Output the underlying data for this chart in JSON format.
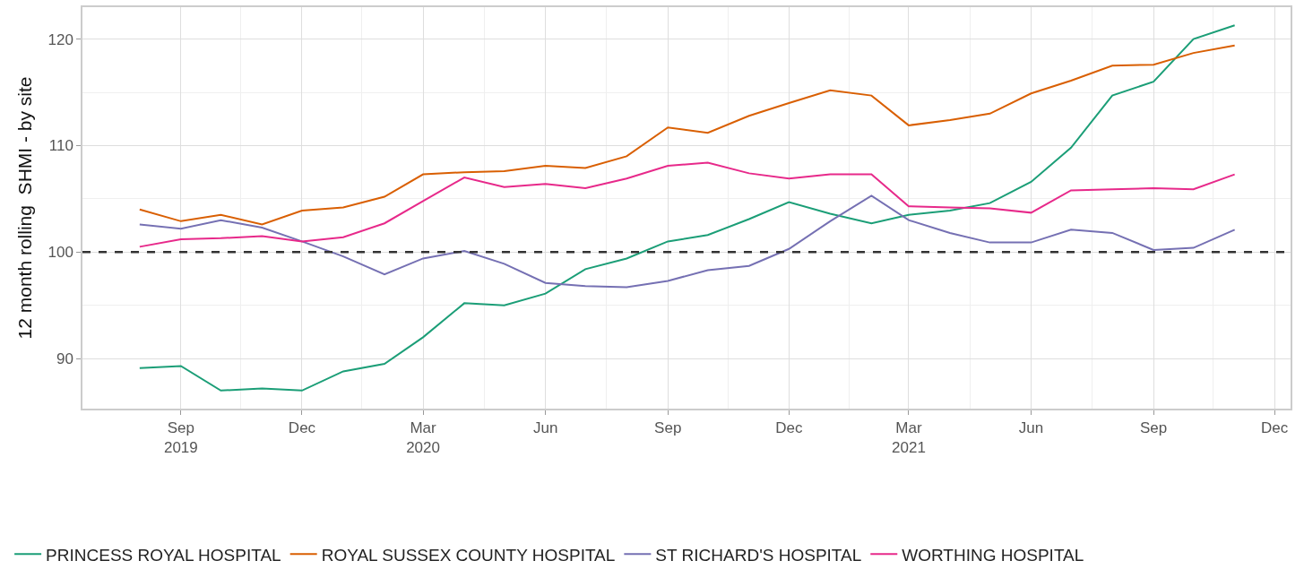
{
  "chart_data": {
    "type": "line",
    "ylabel": "12 month rolling  SHMI - by site",
    "x": [
      "2019-08-01",
      "2019-09-01",
      "2019-10-01",
      "2019-11-01",
      "2019-12-01",
      "2020-01-01",
      "2020-02-01",
      "2020-03-01",
      "2020-04-01",
      "2020-05-01",
      "2020-06-01",
      "2020-07-01",
      "2020-08-01",
      "2020-09-01",
      "2020-10-01",
      "2020-11-01",
      "2020-12-01",
      "2021-01-01",
      "2021-02-01",
      "2021-03-01",
      "2021-04-01",
      "2021-05-01",
      "2021-06-01",
      "2021-07-01",
      "2021-08-01",
      "2021-09-01",
      "2021-10-01",
      "2021-11-01"
    ],
    "series": [
      {
        "name": "PRINCESS ROYAL HOSPITAL",
        "color": "#1b9e77",
        "values": [
          89.1,
          89.3,
          87.0,
          87.2,
          87.0,
          88.8,
          89.5,
          92.0,
          95.2,
          95.0,
          96.1,
          98.4,
          99.4,
          101.0,
          101.6,
          103.1,
          104.7,
          103.6,
          102.7,
          103.5,
          103.9,
          104.6,
          106.6,
          109.8,
          114.7,
          116.0,
          120.0,
          121.3
        ]
      },
      {
        "name": "ROYAL SUSSEX COUNTY HOSPITAL",
        "color": "#d95f02",
        "values": [
          104.0,
          102.9,
          103.5,
          102.6,
          103.9,
          104.2,
          105.2,
          107.3,
          107.5,
          107.6,
          108.1,
          107.9,
          109.0,
          111.7,
          111.2,
          112.8,
          114.0,
          115.2,
          114.7,
          111.9,
          112.4,
          113.0,
          114.9,
          116.1,
          117.5,
          117.6,
          118.7,
          119.4
        ]
      },
      {
        "name": "ST RICHARD'S HOSPITAL",
        "color": "#7570b3",
        "values": [
          102.6,
          102.2,
          103.0,
          102.3,
          101.0,
          99.6,
          97.9,
          99.4,
          100.1,
          98.9,
          97.1,
          96.8,
          96.7,
          97.3,
          98.3,
          98.7,
          100.3,
          102.9,
          105.3,
          103.0,
          101.8,
          100.9,
          100.9,
          102.1,
          101.8,
          100.2,
          100.4,
          102.1
        ]
      },
      {
        "name": "WORTHING HOSPITAL",
        "color": "#e7298a",
        "values": [
          100.5,
          101.2,
          101.3,
          101.5,
          101.0,
          101.4,
          102.7,
          104.8,
          107.0,
          106.1,
          106.4,
          106.0,
          106.9,
          108.1,
          108.4,
          107.4,
          106.9,
          107.3,
          107.3,
          104.3,
          104.2,
          104.1,
          103.7,
          105.8,
          105.9,
          106.0,
          105.9,
          107.3
        ]
      }
    ],
    "xlim": [
      "2019-06-19",
      "2021-12-13"
    ],
    "xticks": [
      {
        "value": "2019-09-01",
        "label": "Sep\n2019"
      },
      {
        "value": "2019-12-01",
        "label": "Dec"
      },
      {
        "value": "2020-03-01",
        "label": "Mar\n2020"
      },
      {
        "value": "2020-06-01",
        "label": "Jun"
      },
      {
        "value": "2020-09-01",
        "label": "Sep"
      },
      {
        "value": "2020-12-01",
        "label": "Dec"
      },
      {
        "value": "2021-03-01",
        "label": "Mar\n2021"
      },
      {
        "value": "2021-06-01",
        "label": "Jun"
      },
      {
        "value": "2021-09-01",
        "label": "Sep"
      },
      {
        "value": "2021-12-01",
        "label": "Dec"
      }
    ],
    "ylim": [
      85.3,
      123.0
    ],
    "yticks": [
      90,
      100,
      110,
      120
    ],
    "grid": true,
    "legend": "bottom",
    "line_style": "solid",
    "marker": "none",
    "ref_lines": [
      {
        "axis": "y",
        "value": 100,
        "color": "#333333",
        "line_style": "dashed"
      }
    ]
  }
}
